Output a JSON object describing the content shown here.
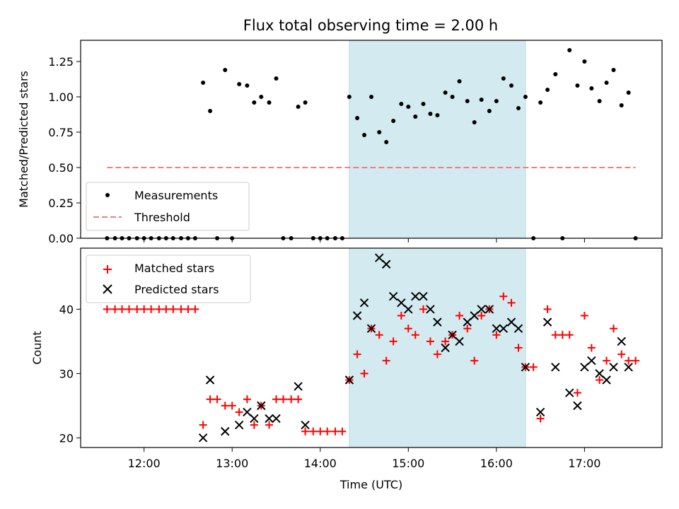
{
  "chart_data": {
    "type": "scatter",
    "title": "Flux total observing time = 2.00 h",
    "xlabel": "Time (UTC)",
    "xlim": [
      11.28,
      17.88
    ],
    "xticks": [
      12,
      13,
      14,
      15,
      16,
      17
    ],
    "xtick_labels": [
      "12:00",
      "13:00",
      "14:00",
      "15:00",
      "16:00",
      "17:00"
    ],
    "shaded_interval": {
      "start": 14.33,
      "end": 16.33,
      "color": "#d4eaf1"
    },
    "colors": {
      "measurements": "#000000",
      "threshold": "#f08080",
      "matched": "#ff0000",
      "predicted": "#000000",
      "shade": "#d4eaf1"
    },
    "top": {
      "ylabel": "Matched/Predicted stars",
      "ylim": [
        0,
        1.4
      ],
      "yticks": [
        0,
        0.25,
        0.5,
        0.75,
        1.0,
        1.25
      ],
      "ytick_labels": [
        "0.00",
        "0.25",
        "0.50",
        "0.75",
        "1.00",
        "1.25"
      ],
      "legend": {
        "placement": "lower-left",
        "entries": [
          "Measurements",
          "Threshold"
        ]
      },
      "threshold": {
        "value": 0.5,
        "x": [
          11.58,
          17.58
        ]
      },
      "measurements": [
        [
          11.58,
          0
        ],
        [
          11.67,
          0
        ],
        [
          11.75,
          0
        ],
        [
          11.83,
          0
        ],
        [
          11.92,
          0
        ],
        [
          12.0,
          0
        ],
        [
          12.08,
          0
        ],
        [
          12.17,
          0
        ],
        [
          12.25,
          0
        ],
        [
          12.33,
          0
        ],
        [
          12.42,
          0
        ],
        [
          12.5,
          0
        ],
        [
          12.58,
          0
        ],
        [
          12.67,
          1.1
        ],
        [
          12.75,
          0.9
        ],
        [
          12.83,
          0
        ],
        [
          12.92,
          1.19
        ],
        [
          13.0,
          0
        ],
        [
          13.08,
          1.09
        ],
        [
          13.17,
          1.08
        ],
        [
          13.25,
          0.96
        ],
        [
          13.33,
          1.0
        ],
        [
          13.42,
          0.96
        ],
        [
          13.5,
          1.13
        ],
        [
          13.58,
          0
        ],
        [
          13.67,
          0
        ],
        [
          13.75,
          0.93
        ],
        [
          13.83,
          0.96
        ],
        [
          13.92,
          0
        ],
        [
          14.0,
          0
        ],
        [
          14.08,
          0
        ],
        [
          14.17,
          0
        ],
        [
          14.25,
          0
        ],
        [
          14.33,
          1.0
        ],
        [
          14.42,
          0.85
        ],
        [
          14.5,
          0.73
        ],
        [
          14.58,
          1.0
        ],
        [
          14.67,
          0.75
        ],
        [
          14.75,
          0.68
        ],
        [
          14.83,
          0.83
        ],
        [
          14.92,
          0.95
        ],
        [
          15.0,
          0.93
        ],
        [
          15.08,
          0.86
        ],
        [
          15.17,
          0.95
        ],
        [
          15.25,
          0.88
        ],
        [
          15.33,
          0.87
        ],
        [
          15.42,
          1.03
        ],
        [
          15.5,
          1.0
        ],
        [
          15.58,
          1.11
        ],
        [
          15.67,
          0.97
        ],
        [
          15.75,
          0.82
        ],
        [
          15.83,
          0.98
        ],
        [
          15.92,
          0.9
        ],
        [
          16.0,
          0.97
        ],
        [
          16.08,
          1.13
        ],
        [
          16.17,
          1.08
        ],
        [
          16.25,
          0.92
        ],
        [
          16.33,
          1.0
        ],
        [
          16.42,
          0
        ],
        [
          16.5,
          0.96
        ],
        [
          16.58,
          1.05
        ],
        [
          16.67,
          1.16
        ],
        [
          16.75,
          0
        ],
        [
          16.83,
          1.33
        ],
        [
          16.92,
          1.08
        ],
        [
          17.0,
          1.25
        ],
        [
          17.08,
          1.06
        ],
        [
          17.17,
          0.97
        ],
        [
          17.25,
          1.1
        ],
        [
          17.33,
          1.19
        ],
        [
          17.42,
          0.94
        ],
        [
          17.5,
          1.03
        ],
        [
          17.58,
          0
        ]
      ]
    },
    "bottom": {
      "ylabel": "Count",
      "ylim": [
        18.5,
        49.5
      ],
      "yticks": [
        20,
        30,
        40
      ],
      "ytick_labels": [
        "20",
        "30",
        "40"
      ],
      "legend": {
        "placement": "top-left",
        "entries": [
          "Matched stars",
          "Predicted stars"
        ]
      },
      "matched_stars": [
        [
          11.58,
          40
        ],
        [
          11.67,
          40
        ],
        [
          11.75,
          40
        ],
        [
          11.83,
          40
        ],
        [
          11.92,
          40
        ],
        [
          12.0,
          40
        ],
        [
          12.08,
          40
        ],
        [
          12.17,
          40
        ],
        [
          12.25,
          40
        ],
        [
          12.33,
          40
        ],
        [
          12.42,
          40
        ],
        [
          12.5,
          40
        ],
        [
          12.58,
          40
        ],
        [
          12.67,
          22
        ],
        [
          12.75,
          26
        ],
        [
          12.83,
          26
        ],
        [
          12.92,
          25
        ],
        [
          13.0,
          25
        ],
        [
          13.08,
          24
        ],
        [
          13.17,
          26
        ],
        [
          13.25,
          22
        ],
        [
          13.33,
          25
        ],
        [
          13.42,
          22
        ],
        [
          13.5,
          26
        ],
        [
          13.58,
          26
        ],
        [
          13.67,
          26
        ],
        [
          13.75,
          26
        ],
        [
          13.83,
          21
        ],
        [
          13.92,
          21
        ],
        [
          14.0,
          21
        ],
        [
          14.08,
          21
        ],
        [
          14.17,
          21
        ],
        [
          14.25,
          21
        ],
        [
          14.33,
          29
        ],
        [
          14.42,
          33
        ],
        [
          14.5,
          30
        ],
        [
          14.58,
          37
        ],
        [
          14.67,
          36
        ],
        [
          14.75,
          32
        ],
        [
          14.83,
          35
        ],
        [
          14.92,
          39
        ],
        [
          15.0,
          37
        ],
        [
          15.08,
          36
        ],
        [
          15.17,
          40
        ],
        [
          15.25,
          35
        ],
        [
          15.33,
          33
        ],
        [
          15.42,
          35
        ],
        [
          15.5,
          36
        ],
        [
          15.58,
          39
        ],
        [
          15.67,
          37
        ],
        [
          15.75,
          32
        ],
        [
          15.83,
          39
        ],
        [
          15.92,
          40
        ],
        [
          16.0,
          36
        ],
        [
          16.08,
          42
        ],
        [
          16.17,
          41
        ],
        [
          16.25,
          34
        ],
        [
          16.33,
          31
        ],
        [
          16.42,
          31
        ],
        [
          16.5,
          23
        ],
        [
          16.58,
          40
        ],
        [
          16.67,
          36
        ],
        [
          16.75,
          36
        ],
        [
          16.83,
          36
        ],
        [
          16.92,
          27
        ],
        [
          17.0,
          39
        ],
        [
          17.08,
          34
        ],
        [
          17.17,
          29
        ],
        [
          17.25,
          32
        ],
        [
          17.33,
          37
        ],
        [
          17.42,
          33
        ],
        [
          17.5,
          32
        ],
        [
          17.58,
          32
        ]
      ],
      "predicted_stars": [
        [
          12.67,
          20
        ],
        [
          12.75,
          29
        ],
        [
          12.92,
          21
        ],
        [
          13.08,
          22
        ],
        [
          13.17,
          24
        ],
        [
          13.25,
          23
        ],
        [
          13.33,
          25
        ],
        [
          13.42,
          23
        ],
        [
          13.5,
          23
        ],
        [
          13.75,
          28
        ],
        [
          13.83,
          22
        ],
        [
          14.33,
          29
        ],
        [
          14.42,
          39
        ],
        [
          14.5,
          41
        ],
        [
          14.58,
          37
        ],
        [
          14.67,
          48
        ],
        [
          14.75,
          47
        ],
        [
          14.83,
          42
        ],
        [
          14.92,
          41
        ],
        [
          15.0,
          40
        ],
        [
          15.08,
          42
        ],
        [
          15.17,
          42
        ],
        [
          15.25,
          40
        ],
        [
          15.33,
          38
        ],
        [
          15.42,
          34
        ],
        [
          15.5,
          36
        ],
        [
          15.58,
          35
        ],
        [
          15.67,
          38
        ],
        [
          15.75,
          39
        ],
        [
          15.83,
          40
        ],
        [
          15.92,
          40
        ],
        [
          16.0,
          37
        ],
        [
          16.08,
          37
        ],
        [
          16.17,
          38
        ],
        [
          16.25,
          37
        ],
        [
          16.33,
          31
        ],
        [
          16.5,
          24
        ],
        [
          16.58,
          38
        ],
        [
          16.67,
          31
        ],
        [
          16.83,
          27
        ],
        [
          16.92,
          25
        ],
        [
          17.0,
          31
        ],
        [
          17.08,
          32
        ],
        [
          17.17,
          30
        ],
        [
          17.25,
          29
        ],
        [
          17.33,
          31
        ],
        [
          17.42,
          35
        ],
        [
          17.5,
          31
        ]
      ]
    }
  }
}
